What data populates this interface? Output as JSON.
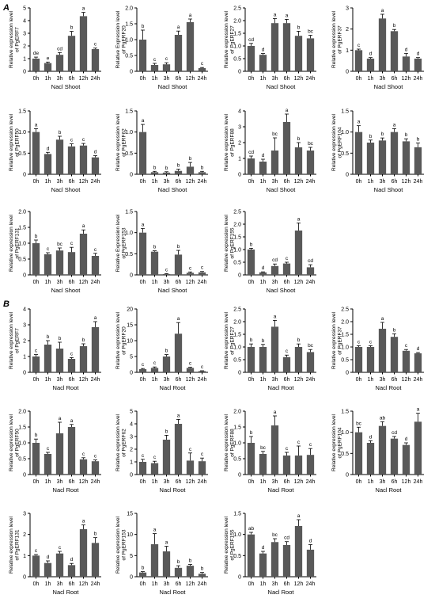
{
  "panel_labels": [
    "A",
    "B"
  ],
  "colors": {
    "bar": "#595959",
    "axis": "#000000",
    "text": "#000000",
    "background": "#ffffff"
  },
  "chart_data": [
    {
      "panel": "A",
      "type": "bar",
      "title": "",
      "xlabel": "Nacl Shoot",
      "ylabel": "Relative expression level of PgERF7",
      "categories": [
        "0h",
        "1h",
        "3h",
        "6h",
        "12h",
        "24h"
      ],
      "values": [
        1.0,
        0.65,
        1.3,
        2.8,
        4.35,
        1.75
      ],
      "errors": [
        0.12,
        0.08,
        0.18,
        0.35,
        0.3,
        0.08
      ],
      "letters": [
        "de",
        "e",
        "cd",
        "b",
        "a",
        "c"
      ],
      "ylim": [
        0,
        5
      ],
      "yticks": [
        0,
        1,
        2,
        3,
        4,
        5
      ]
    },
    {
      "panel": "A",
      "type": "bar",
      "title": "",
      "xlabel": "Nacl Shoot",
      "ylabel": "Relative Expression level of PgERF20",
      "categories": [
        "0h",
        "1h",
        "3h",
        "6h",
        "12h",
        "24h"
      ],
      "values": [
        1.0,
        0.2,
        0.22,
        1.15,
        1.55,
        0.1
      ],
      "errors": [
        0.3,
        0.05,
        0.05,
        0.12,
        0.1,
        0.02
      ],
      "letters": [
        "b",
        "c",
        "c",
        "a",
        "a",
        "c"
      ],
      "ylim": [
        0,
        2
      ],
      "yticks": [
        0,
        0.5,
        1.0,
        1.5,
        2.0
      ]
    },
    {
      "panel": "A",
      "type": "bar",
      "title": "",
      "xlabel": "Nacl Shoot",
      "ylabel": "Relative expression level of PgERF27",
      "categories": [
        "0h",
        "1h",
        "3h",
        "6h",
        "12h",
        "24h"
      ],
      "values": [
        1.0,
        0.65,
        1.9,
        1.9,
        1.4,
        1.3
      ],
      "errors": [
        0.1,
        0.05,
        0.18,
        0.15,
        0.18,
        0.12
      ],
      "letters": [
        "cd",
        "d",
        "a",
        "a",
        "b",
        "bc"
      ],
      "ylim": [
        0,
        2.5
      ],
      "yticks": [
        0,
        0.5,
        1.0,
        1.5,
        2.0,
        2.5
      ]
    },
    {
      "panel": "A",
      "type": "bar",
      "title": "",
      "xlabel": "Nacl Shoot",
      "ylabel": "Relative expression level of PgERF37",
      "categories": [
        "0h",
        "1h",
        "3h",
        "6h",
        "12h",
        "24h"
      ],
      "values": [
        1.0,
        0.6,
        2.5,
        1.9,
        0.7,
        0.6
      ],
      "errors": [
        0.05,
        0.05,
        0.2,
        0.08,
        0.15,
        0.05
      ],
      "letters": [
        "c",
        "d",
        "a",
        "b",
        "d",
        "d"
      ],
      "ylim": [
        0,
        3
      ],
      "yticks": [
        0,
        1,
        2,
        3
      ]
    },
    {
      "panel": "A",
      "type": "bar",
      "title": "",
      "xlabel": "Nacl Shoot",
      "ylabel": "Relative expression level of PgERF50",
      "categories": [
        "0h",
        "1h",
        "3h",
        "6h",
        "12h",
        "24h"
      ],
      "values": [
        1.0,
        0.48,
        0.82,
        0.66,
        0.68,
        0.4
      ],
      "errors": [
        0.08,
        0.04,
        0.08,
        0.06,
        0.05,
        0.04
      ],
      "letters": [
        "a",
        "d",
        "b",
        "c",
        "c",
        "d"
      ],
      "ylim": [
        0,
        1.5
      ],
      "yticks": [
        0,
        0.5,
        1.0,
        1.5
      ]
    },
    {
      "panel": "A",
      "type": "bar",
      "title": "",
      "xlabel": "Nacl Shoot",
      "ylabel": "Relative expression level of PgERF62",
      "categories": [
        "0h",
        "1h",
        "3h",
        "6h",
        "12h",
        "24h"
      ],
      "values": [
        1.0,
        0.05,
        0.04,
        0.08,
        0.18,
        0.05
      ],
      "errors": [
        0.18,
        0.02,
        0.02,
        0.04,
        0.1,
        0.02
      ],
      "letters": [
        "a",
        "b",
        "b",
        "b",
        "b",
        "b"
      ],
      "ylim": [
        0,
        1.5
      ],
      "yticks": [
        0,
        0.5,
        1.0,
        1.5
      ]
    },
    {
      "panel": "A",
      "type": "bar",
      "title": "",
      "xlabel": "Nacl Shoot",
      "ylabel": "Relative expression level of PgERF88",
      "categories": [
        "0h",
        "1h",
        "3h",
        "6h",
        "12h",
        "24h"
      ],
      "values": [
        1.0,
        0.8,
        1.5,
        3.3,
        1.7,
        1.5
      ],
      "errors": [
        0.15,
        0.15,
        0.8,
        0.5,
        0.3,
        0.2
      ],
      "letters": [
        "cd",
        "d",
        "bc",
        "a",
        "b",
        "bc"
      ],
      "ylim": [
        0,
        4
      ],
      "yticks": [
        0,
        1,
        2,
        3,
        4
      ]
    },
    {
      "panel": "A",
      "type": "bar",
      "title": "",
      "xlabel": "Nacl Shoot",
      "ylabel": "Relative expression level of PgERF104",
      "categories": [
        "0h",
        "1h",
        "3h",
        "6h",
        "12h",
        "24h"
      ],
      "values": [
        1.0,
        0.75,
        0.8,
        1.0,
        0.78,
        0.64
      ],
      "errors": [
        0.15,
        0.06,
        0.06,
        0.08,
        0.06,
        0.1
      ],
      "letters": [
        "a",
        "b",
        "b",
        "a",
        "b",
        "b"
      ],
      "ylim": [
        0,
        1.5
      ],
      "yticks": [
        0,
        0.5,
        1.0,
        1.5
      ]
    },
    {
      "panel": "A",
      "type": "bar",
      "title": "",
      "xlabel": "Nacl Shoot",
      "ylabel": "Relative expression level of PgERF131",
      "categories": [
        "0h",
        "1h",
        "3h",
        "6h",
        "12h",
        "24h"
      ],
      "values": [
        1.0,
        0.65,
        0.77,
        0.72,
        1.3,
        0.6
      ],
      "errors": [
        0.1,
        0.05,
        0.08,
        0.15,
        0.12,
        0.08
      ],
      "letters": [
        "b",
        "c",
        "bc",
        "c",
        "a",
        "c"
      ],
      "ylim": [
        0,
        2
      ],
      "yticks": [
        0,
        0.5,
        1.0,
        1.5,
        2.0
      ]
    },
    {
      "panel": "A",
      "type": "bar",
      "title": "",
      "xlabel": "Nacl Shoot",
      "ylabel": "Relative Expression level of PgERF153",
      "categories": [
        "0h",
        "1h",
        "3h",
        "6h",
        "12h",
        "24h"
      ],
      "values": [
        1.0,
        0.55,
        0.02,
        0.48,
        0.05,
        0.06
      ],
      "errors": [
        0.1,
        0.02,
        0.01,
        0.1,
        0.02,
        0.02
      ],
      "letters": [
        "a",
        "b",
        "c",
        "b",
        "c",
        "c"
      ],
      "ylim": [
        0,
        1.5
      ],
      "yticks": [
        0,
        0.5,
        1.0,
        1.5
      ]
    },
    {
      "panel": "A",
      "type": "bar",
      "title": "",
      "xlabel": "Nacl Shoot",
      "ylabel": "Relative expression level of PgERF155",
      "categories": [
        "0h",
        "1h",
        "3h",
        "6h",
        "12h",
        "24h"
      ],
      "values": [
        1.0,
        0.1,
        0.35,
        0.45,
        1.75,
        0.3
      ],
      "errors": [
        0.05,
        0.02,
        0.08,
        0.05,
        0.3,
        0.1
      ],
      "letters": [
        "b",
        "d",
        "cd",
        "c",
        "a",
        "cd"
      ],
      "ylim": [
        0,
        2.5
      ],
      "yticks": [
        0,
        0.5,
        1.0,
        1.5,
        2.0,
        2.5
      ]
    },
    {
      "panel": "B",
      "type": "bar",
      "title": "",
      "xlabel": "Nacl Root",
      "ylabel": "Relative expression level of PgERF7",
      "categories": [
        "0h",
        "1h",
        "3h",
        "6h",
        "12h",
        "24h"
      ],
      "values": [
        1.0,
        1.75,
        1.5,
        0.85,
        1.65,
        2.85
      ],
      "errors": [
        0.12,
        0.25,
        0.4,
        0.08,
        0.15,
        0.35
      ],
      "letters": [
        "c",
        "b",
        "b",
        "c",
        "b",
        "a"
      ],
      "ylim": [
        0,
        4
      ],
      "yticks": [
        0,
        1,
        2,
        3,
        4
      ]
    },
    {
      "panel": "B",
      "type": "bar",
      "title": "",
      "xlabel": "Nacl Root",
      "ylabel": "Relative expression level of PgERF20",
      "categories": [
        "0h",
        "1h",
        "3h",
        "6h",
        "12h",
        "24h"
      ],
      "values": [
        1.0,
        1.4,
        5.0,
        12.2,
        1.4,
        0.4
      ],
      "errors": [
        0.2,
        0.3,
        0.6,
        3.5,
        0.2,
        0.1
      ],
      "letters": [
        "c",
        "c",
        "b",
        "a",
        "c",
        "c"
      ],
      "ylim": [
        0,
        20
      ],
      "yticks": [
        0,
        5,
        10,
        15,
        20
      ]
    },
    {
      "panel": "B",
      "type": "bar",
      "title": "",
      "xlabel": "Nacl Root",
      "ylabel": "Relative expression level of PgERF27",
      "categories": [
        "0h",
        "1h",
        "3h",
        "6h",
        "12h",
        "24h"
      ],
      "values": [
        1.0,
        1.0,
        1.8,
        0.6,
        1.0,
        0.8
      ],
      "errors": [
        0.12,
        0.1,
        0.25,
        0.08,
        0.12,
        0.1
      ],
      "letters": [
        "b",
        "b",
        "a",
        "c",
        "b",
        "bc"
      ],
      "ylim": [
        0,
        2.5
      ],
      "yticks": [
        0,
        0.5,
        1.0,
        1.5,
        2.0,
        2.5
      ]
    },
    {
      "panel": "B",
      "type": "bar",
      "title": "",
      "xlabel": "Nacl Root",
      "ylabel": "Relative expression level of PgERF37",
      "categories": [
        "0h",
        "1h",
        "3h",
        "6h",
        "12h",
        "24h"
      ],
      "values": [
        1.0,
        1.0,
        1.72,
        1.4,
        0.85,
        0.75
      ],
      "errors": [
        0.05,
        0.05,
        0.25,
        0.12,
        0.05,
        0.03
      ],
      "letters": [
        "c",
        "c",
        "a",
        "b",
        "c",
        "d"
      ],
      "ylim": [
        0,
        2.5
      ],
      "yticks": [
        0,
        0.5,
        1.0,
        1.5,
        2.0,
        2.5
      ]
    },
    {
      "panel": "B",
      "type": "bar",
      "title": "",
      "xlabel": "Nacl Root",
      "ylabel": "Relative expression level of PgERF50",
      "categories": [
        "0h",
        "1h",
        "3h",
        "6h",
        "12h",
        "24h"
      ],
      "values": [
        1.0,
        0.65,
        1.3,
        1.5,
        0.48,
        0.42
      ],
      "errors": [
        0.12,
        0.05,
        0.35,
        0.08,
        0.05,
        0.04
      ],
      "letters": [
        "b",
        "c",
        "a",
        "a",
        "c",
        "c"
      ],
      "ylim": [
        0,
        2
      ],
      "yticks": [
        0,
        0.5,
        1.0,
        1.5,
        2.0
      ]
    },
    {
      "panel": "B",
      "type": "bar",
      "title": "",
      "xlabel": "Nacl Root",
      "ylabel": "Relative expression level of PgERF62",
      "categories": [
        "0h",
        "1h",
        "3h",
        "6h",
        "12h",
        "24h"
      ],
      "values": [
        1.0,
        0.9,
        2.75,
        4.0,
        1.1,
        1.05
      ],
      "errors": [
        0.2,
        0.15,
        0.35,
        0.35,
        0.6,
        0.25
      ],
      "letters": [
        "c",
        "c",
        "b",
        "a",
        "c",
        "c"
      ],
      "ylim": [
        0,
        5
      ],
      "yticks": [
        0,
        1,
        2,
        3,
        4,
        5
      ]
    },
    {
      "panel": "B",
      "type": "bar",
      "title": "",
      "xlabel": "Nacl Root",
      "ylabel": "Relative expression level of PgERF88",
      "categories": [
        "0h",
        "1h",
        "3h",
        "6h",
        "12h",
        "24h"
      ],
      "values": [
        1.0,
        0.65,
        1.55,
        0.6,
        0.6,
        0.62
      ],
      "errors": [
        0.2,
        0.08,
        0.3,
        0.1,
        0.3,
        0.2
      ],
      "letters": [
        "b",
        "bc",
        "a",
        "c",
        "c",
        "c"
      ],
      "ylim": [
        0,
        2
      ],
      "yticks": [
        0,
        0.5,
        1.0,
        1.5,
        2.0
      ]
    },
    {
      "panel": "B",
      "type": "bar",
      "title": "",
      "xlabel": "Nacl Root",
      "ylabel": "Relative expression level of PgERF104",
      "categories": [
        "0h",
        "1h",
        "3h",
        "6h",
        "12h",
        "24h"
      ],
      "values": [
        1.0,
        0.75,
        1.15,
        0.85,
        0.7,
        1.25
      ],
      "errors": [
        0.12,
        0.05,
        0.1,
        0.05,
        0.05,
        0.2
      ],
      "letters": [
        "bc",
        "d",
        "ab",
        "cd",
        "d",
        "a"
      ],
      "ylim": [
        0,
        1.5
      ],
      "yticks": [
        0,
        0.5,
        1.0,
        1.5
      ]
    },
    {
      "panel": "B",
      "type": "bar",
      "title": "",
      "xlabel": "Nacl Root",
      "ylabel": "Relative expression level of PgERF131",
      "categories": [
        "0h",
        "1h",
        "3h",
        "6h",
        "12h",
        "24h"
      ],
      "values": [
        1.0,
        0.65,
        1.1,
        0.55,
        2.25,
        1.6
      ],
      "errors": [
        0.05,
        0.1,
        0.1,
        0.08,
        0.2,
        0.25
      ],
      "letters": [
        "c",
        "d",
        "c",
        "d",
        "a",
        "b"
      ],
      "ylim": [
        0,
        3
      ],
      "yticks": [
        0,
        1,
        2,
        3
      ]
    },
    {
      "panel": "B",
      "type": "bar",
      "title": "",
      "xlabel": "Nacl Root",
      "ylabel": "Relative expression level of PgERF153",
      "categories": [
        "0h",
        "1h",
        "3h",
        "6h",
        "12h",
        "24h"
      ],
      "values": [
        1.0,
        7.7,
        6.0,
        2.1,
        2.6,
        0.7
      ],
      "errors": [
        0.2,
        2.5,
        1.2,
        0.5,
        0.3,
        0.3
      ],
      "letters": [
        "b",
        "a",
        "a",
        "b",
        "b",
        "b"
      ],
      "ylim": [
        0,
        15
      ],
      "yticks": [
        0,
        5,
        10,
        15
      ]
    },
    {
      "panel": "B",
      "type": "bar",
      "title": "",
      "xlabel": "Nacl Root",
      "ylabel": "Relative expression level of PgERF155",
      "categories": [
        "0h",
        "1h",
        "3h",
        "6h",
        "12h",
        "24h"
      ],
      "values": [
        1.0,
        0.55,
        0.82,
        0.75,
        1.2,
        0.64
      ],
      "errors": [
        0.05,
        0.05,
        0.08,
        0.08,
        0.15,
        0.12
      ],
      "letters": [
        "ab",
        "d",
        "bc",
        "cd",
        "a",
        "d"
      ],
      "ylim": [
        0,
        1.5
      ],
      "yticks": [
        0,
        0.5,
        1.0,
        1.5
      ]
    }
  ]
}
